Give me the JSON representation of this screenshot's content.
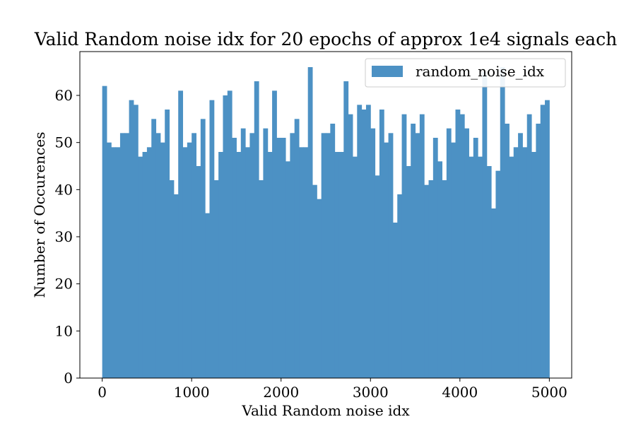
{
  "chart_data": {
    "type": "bar",
    "title": "Valid Random noise idx for 20 epochs of approx 1e4 signals each",
    "xlabel": "Valid Random noise idx",
    "ylabel": "Number of Occurences",
    "xlim": [
      -250,
      5250
    ],
    "ylim": [
      0,
      69.3
    ],
    "xticks": [
      0,
      1000,
      2000,
      3000,
      4000,
      5000
    ],
    "yticks": [
      0,
      10,
      20,
      30,
      40,
      50,
      60
    ],
    "legend_position": "top-right",
    "bar_color": "#4c91c4",
    "series": [
      {
        "name": "random_noise_idx",
        "bin_start": 0,
        "bin_width": 50,
        "values": [
          62,
          50,
          49,
          49,
          52,
          52,
          59,
          58,
          47,
          48,
          49,
          55,
          52,
          50,
          57,
          42,
          39,
          61,
          49,
          50,
          52,
          45,
          55,
          35,
          59,
          42,
          48,
          60,
          61,
          51,
          48,
          53,
          49,
          52,
          63,
          42,
          53,
          48,
          61,
          51,
          51,
          46,
          52,
          55,
          49,
          49,
          66,
          41,
          38,
          52,
          52,
          54,
          48,
          48,
          63,
          56,
          47,
          58,
          57,
          58,
          53,
          43,
          57,
          50,
          52,
          33,
          39,
          56,
          45,
          54,
          52,
          56,
          41,
          42,
          51,
          46,
          42,
          53,
          50,
          57,
          56,
          53,
          47,
          51,
          47,
          65,
          45,
          36,
          44,
          66,
          54,
          47,
          49,
          52,
          49,
          56,
          48,
          54,
          58,
          59
        ]
      }
    ]
  }
}
